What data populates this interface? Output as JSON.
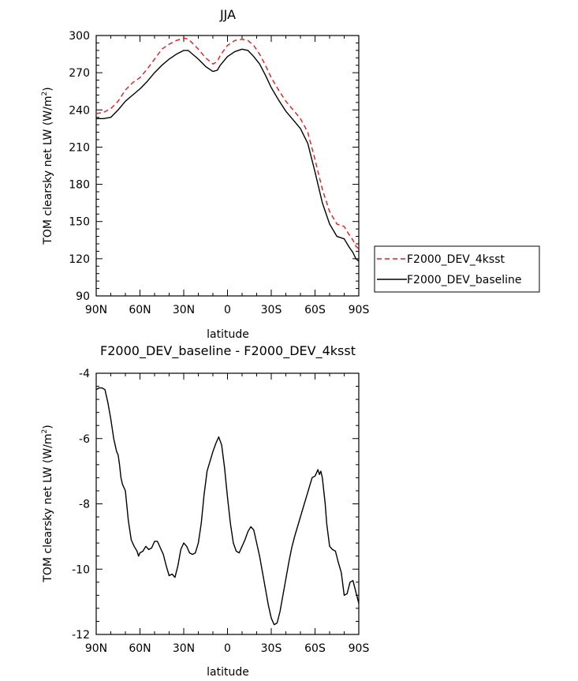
{
  "chart_data": [
    {
      "type": "line",
      "title": "JJA",
      "xlabel": "latitude",
      "ylabel_main": "TOM clearsky net LW (W/m",
      "ylabel_sup": "2",
      "ylabel_end": ")",
      "xlim": [
        90,
        -90
      ],
      "ylim": [
        90,
        300
      ],
      "x_ticks": [
        90,
        60,
        30,
        0,
        -30,
        -60,
        -90
      ],
      "x_tick_labels": [
        "90N",
        "60N",
        "30N",
        "0",
        "30S",
        "60S",
        "90S"
      ],
      "y_ticks": [
        90,
        120,
        150,
        180,
        210,
        240,
        270,
        300
      ],
      "y_tick_labels": [
        "90",
        "120",
        "150",
        "180",
        "210",
        "240",
        "270",
        "300"
      ],
      "legend": {
        "position": "right"
      },
      "series": [
        {
          "name": "F2000_DEV_4ksst",
          "color": "#e41a1c",
          "dash": "dashed",
          "x": [
            90,
            85,
            80,
            75,
            70,
            65,
            60,
            55,
            50,
            45,
            40,
            35,
            30,
            27,
            25,
            20,
            15,
            10,
            7,
            5,
            0,
            -5,
            -10,
            -14,
            -18,
            -22,
            -26,
            -30,
            -35,
            -40,
            -45,
            -50,
            -55,
            -60,
            -65,
            -70,
            -75,
            -80,
            -83,
            -86,
            -88,
            -90
          ],
          "y": [
            237,
            238,
            241,
            247,
            256,
            262,
            266,
            273,
            281,
            289,
            293,
            296,
            298,
            297,
            295,
            289,
            282,
            277,
            279,
            284,
            292,
            296,
            297,
            296,
            292,
            285,
            276,
            266,
            256,
            247,
            240,
            233,
            222,
            200,
            176,
            158,
            148,
            146,
            140,
            135,
            130,
            128
          ]
        },
        {
          "name": "F2000_DEV_baseline",
          "color": "#000000",
          "dash": "solid",
          "x": [
            90,
            85,
            80,
            75,
            70,
            65,
            60,
            55,
            50,
            45,
            40,
            35,
            30,
            27,
            25,
            20,
            15,
            10,
            7,
            5,
            0,
            -5,
            -10,
            -14,
            -18,
            -22,
            -26,
            -30,
            -35,
            -40,
            -45,
            -50,
            -55,
            -60,
            -65,
            -70,
            -75,
            -80,
            -83,
            -86,
            -88,
            -90
          ],
          "y": [
            233,
            233,
            234,
            240,
            247,
            252,
            257,
            263,
            270,
            276,
            281,
            285,
            288,
            288,
            286,
            281,
            275,
            271,
            272,
            276,
            283,
            287,
            289,
            288,
            283,
            277,
            268,
            258,
            248,
            239,
            232,
            225,
            213,
            190,
            165,
            148,
            138,
            136,
            130,
            125,
            120,
            118
          ]
        }
      ]
    },
    {
      "type": "line",
      "title": "F2000_DEV_baseline - F2000_DEV_4ksst",
      "xlabel": "latitude",
      "ylabel_main": "TOM clearsky net LW (W/m",
      "ylabel_sup": "2",
      "ylabel_end": ")",
      "xlim": [
        90,
        -90
      ],
      "ylim": [
        -12,
        -4
      ],
      "x_ticks": [
        90,
        60,
        30,
        0,
        -30,
        -60,
        -90
      ],
      "x_tick_labels": [
        "90N",
        "60N",
        "30N",
        "0",
        "30S",
        "60S",
        "90S"
      ],
      "y_ticks": [
        -12,
        -10,
        -8,
        -6,
        -4
      ],
      "y_tick_labels": [
        "-12",
        "-10",
        "-8",
        "-6",
        "-4"
      ],
      "series": [
        {
          "color": "#000000",
          "dash": "solid",
          "x": [
            90,
            88,
            86,
            84,
            82,
            80,
            78,
            76,
            75,
            74,
            73,
            72,
            70,
            68,
            66,
            64,
            62,
            61,
            60,
            58,
            56,
            54,
            52,
            50,
            48,
            46,
            44,
            42,
            40,
            38,
            36,
            34,
            32,
            30,
            28,
            26,
            24,
            22,
            20,
            18,
            16,
            14,
            12,
            10,
            8,
            6,
            4,
            2,
            0,
            -2,
            -4,
            -6,
            -8,
            -10,
            -12,
            -14,
            -16,
            -18,
            -20,
            -22,
            -24,
            -26,
            -28,
            -30,
            -32,
            -34,
            -36,
            -38,
            -40,
            -42,
            -44,
            -46,
            -48,
            -50,
            -52,
            -54,
            -56,
            -58,
            -60,
            -61,
            -62,
            -63,
            -64,
            -65,
            -66,
            -67,
            -68,
            -70,
            -72,
            -74,
            -76,
            -78,
            -80,
            -82,
            -84,
            -86,
            -88,
            -90
          ],
          "y": [
            -4.5,
            -4.45,
            -4.45,
            -4.5,
            -4.9,
            -5.4,
            -6.0,
            -6.4,
            -6.5,
            -6.8,
            -7.2,
            -7.4,
            -7.6,
            -8.5,
            -9.1,
            -9.3,
            -9.45,
            -9.6,
            -9.5,
            -9.45,
            -9.3,
            -9.4,
            -9.35,
            -9.15,
            -9.15,
            -9.35,
            -9.55,
            -9.9,
            -10.2,
            -10.15,
            -10.25,
            -9.9,
            -9.4,
            -9.2,
            -9.3,
            -9.5,
            -9.55,
            -9.5,
            -9.2,
            -8.6,
            -7.7,
            -7.0,
            -6.7,
            -6.4,
            -6.15,
            -5.95,
            -6.2,
            -6.9,
            -7.8,
            -8.6,
            -9.2,
            -9.45,
            -9.5,
            -9.3,
            -9.1,
            -8.85,
            -8.7,
            -8.8,
            -9.2,
            -9.6,
            -10.1,
            -10.6,
            -11.1,
            -11.5,
            -11.7,
            -11.65,
            -11.3,
            -10.8,
            -10.3,
            -9.8,
            -9.35,
            -9.0,
            -8.7,
            -8.4,
            -8.1,
            -7.8,
            -7.5,
            -7.2,
            -7.15,
            -7.05,
            -6.95,
            -7.1,
            -7.0,
            -7.2,
            -7.6,
            -8.0,
            -8.6,
            -9.3,
            -9.4,
            -9.45,
            -9.8,
            -10.1,
            -10.8,
            -10.75,
            -10.4,
            -10.35,
            -10.7,
            -11.05
          ]
        }
      ]
    }
  ],
  "legend_labels": [
    "F2000_DEV_4ksst",
    "F2000_DEV_baseline"
  ]
}
